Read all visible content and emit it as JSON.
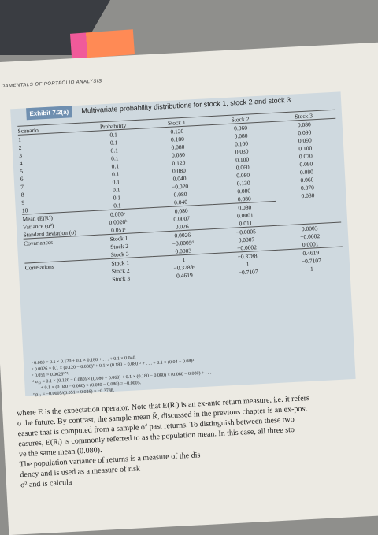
{
  "header": {
    "running_head": "DAMENTALS OF PORTFOLIO ANALYSIS"
  },
  "exhibit": {
    "label": "Exhibit 7.2(a)",
    "title": "Multivariate probability distributions for stock 1, stock 2 and stock 3",
    "columns": [
      "Scenario",
      "Probability",
      "Stock 1",
      "Stock 2",
      "Stock 3"
    ],
    "rows": [
      [
        "1",
        "0.1",
        "0.120",
        "0.060",
        "0.080"
      ],
      [
        "2",
        "0.1",
        "0.180",
        "0.080",
        "0.090"
      ],
      [
        "3",
        "0.1",
        "0.080",
        "0.100",
        "0.090"
      ],
      [
        "4",
        "0.1",
        "0.080",
        "0.030",
        "0.100"
      ],
      [
        "5",
        "0.1",
        "0.120",
        "0.100",
        "0.070"
      ],
      [
        "6",
        "0.1",
        "0.080",
        "0.060",
        "0.080"
      ],
      [
        "7",
        "0.1",
        "0.040",
        "0.080",
        "0.080"
      ],
      [
        "8",
        "0.1",
        "−0.020",
        "0.130",
        "0.060"
      ],
      [
        "9",
        "0.1",
        "0.080",
        "0.080",
        "0.070"
      ],
      [
        "10",
        "0.1",
        "0.040",
        "0.080",
        "0.080"
      ]
    ],
    "stats": [
      [
        "Mean (E(R))",
        "0.080ᵃ",
        "0.080",
        "0.080"
      ],
      [
        "Variance (σ²)",
        "0.0026ᵇ",
        "0.0007",
        "0.0001"
      ],
      [
        "Standard deviation (σ)",
        "0.051ᶜ",
        "0.026",
        "0.011"
      ]
    ],
    "covariances": {
      "label": "Covariances",
      "rows": [
        [
          "Stock 1",
          "0.0026",
          "−0.0005",
          "0.0003"
        ],
        [
          "Stock 2",
          "−0.0005ᵈ",
          "0.0007",
          "−0.0002"
        ],
        [
          "Stock 3",
          "0.0003",
          "−0.0002",
          "0.0001"
        ]
      ]
    },
    "correlations": {
      "label": "Correlations",
      "rows": [
        [
          "Stock 1",
          "1",
          "−0.3788",
          "0.4619"
        ],
        [
          "Stock 2",
          "−0.3788ᵉ",
          "1",
          "−0.7107"
        ],
        [
          "Stock 3",
          "0.4619",
          "−0.7107",
          "1"
        ]
      ]
    },
    "footnotes": [
      "ᵃ 0.080 = 0.1 × 0.120 + 0.1 × 0.180 + . . . + 0.1 × 0.040.",
      "ᵇ 0.0026 = 0.1 × (0.120 − 0.080)² + 0.1 × (0.180 − 0.080)² + . . . + 0.1 × (0.04 − 0.08)².",
      "ᶜ 0.051 = 0.0026¹ᐟ².",
      "ᵈ σ₁₂ = 0.1 × (0.120 − 0.080) × (0.080 − 0.060) + 0.1 × (0.180 − 0.080) × (0.080 − 0.080) + . . .",
      "+ 0.1 × (0.040 − 0.080) × (0.080 − 0.080) = −0.0005.",
      "ᵉ ρ₁₂ = −0.0005/(0.051 × 0.026) = −0.3788."
    ]
  },
  "body": [
    "where E is the expectation operator. Note that E(Rᵢ) is an ex-ante return measure, i.e. it refers",
    "o the future. By contrast, the sample mean R̄, discussed in the previous chapter is an ex-post",
    "easure that is computed from a sample of past returns. To distinguish between these two",
    "easures, E(Rᵢ) is commonly referred to as the population mean. In this case, all three sto",
    "ve the same mean (0.080).",
    "The population variance of returns is a measure of the dis",
    "dency and is used as a measure of risk",
    "σ² and is calcula"
  ]
}
